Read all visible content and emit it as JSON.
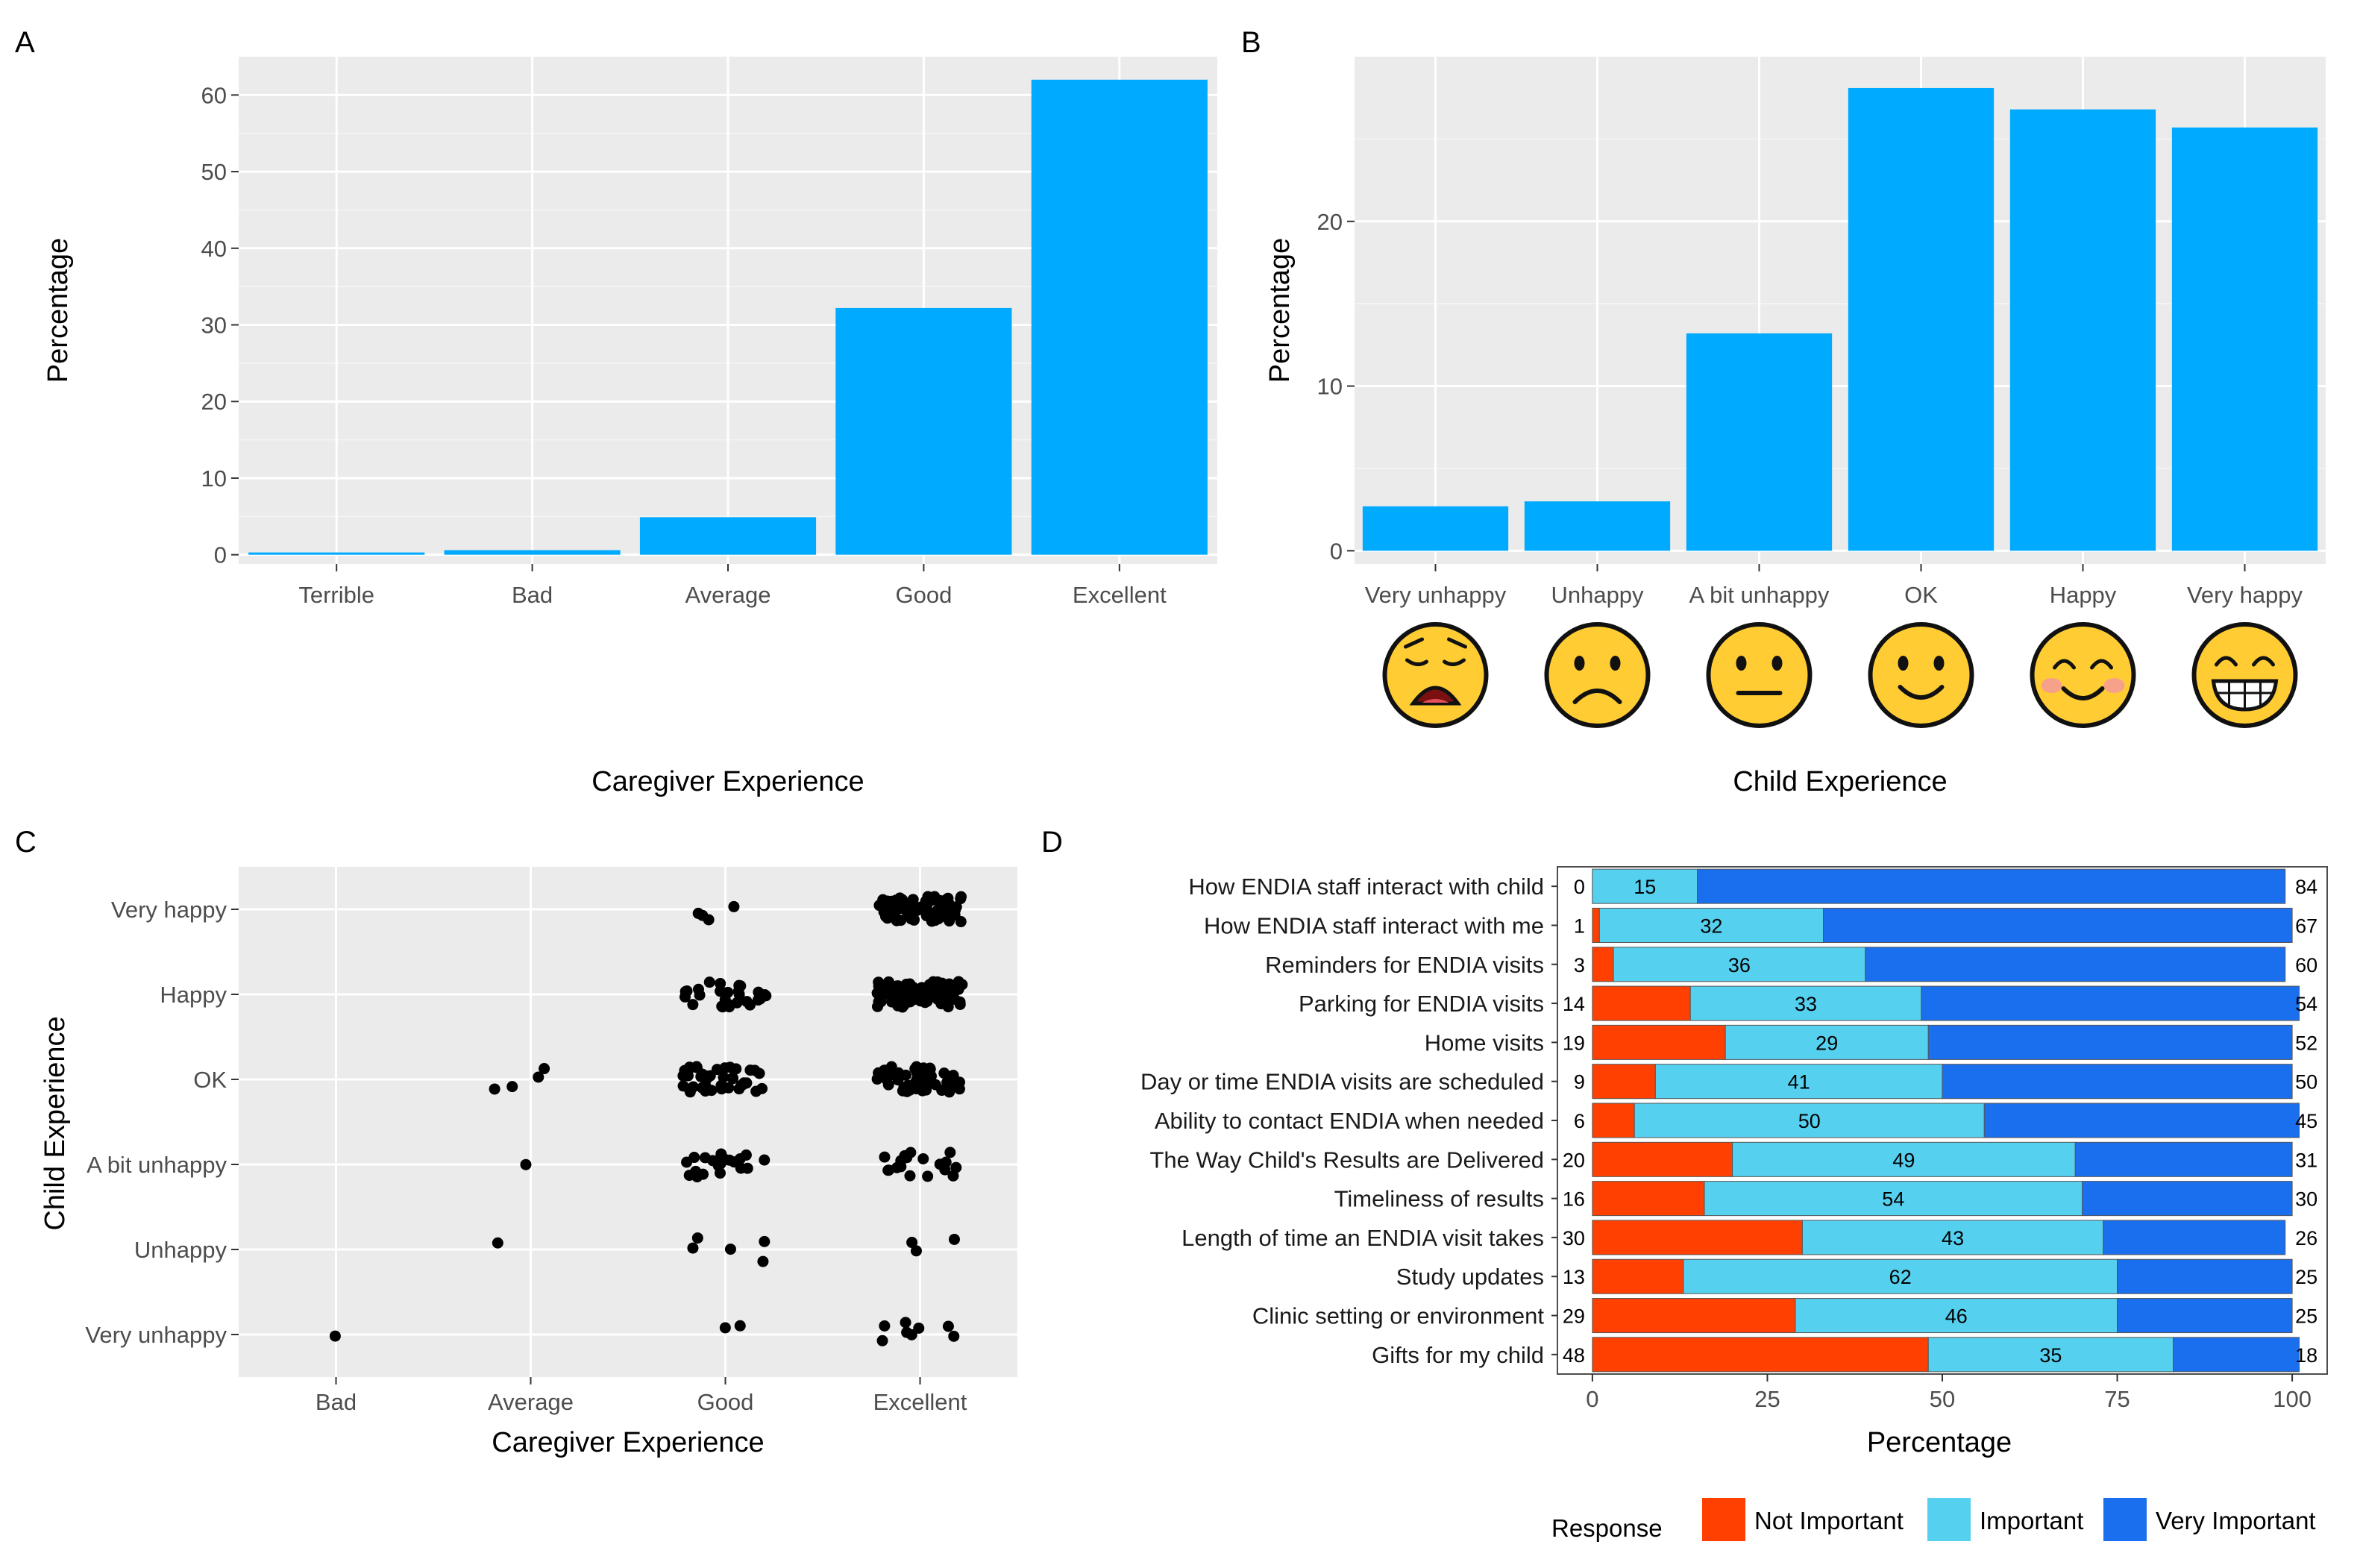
{
  "chart_data": [
    {
      "panel": "A",
      "type": "bar",
      "categories": [
        "Terrible",
        "Bad",
        "Average",
        "Good",
        "Excellent"
      ],
      "values": [
        0.3,
        0.6,
        4.9,
        32.2,
        62.0
      ],
      "xlabel": "Caregiver Experience",
      "ylabel": "Percentage",
      "ylim": [
        -1.2,
        65
      ],
      "yticks": [
        0,
        10,
        20,
        30,
        40,
        50,
        60
      ],
      "grid": true,
      "color": "#00aaff"
    },
    {
      "panel": "B",
      "type": "bar",
      "categories": [
        "Very unhappy",
        "Unhappy",
        "A bit unhappy",
        "OK",
        "Happy",
        "Very happy"
      ],
      "emoji_icons": [
        "tired-face-icon",
        "frowning-face-icon",
        "neutral-face-icon",
        "slightly-smiling-face-icon",
        "smiling-face-icon",
        "grinning-face-icon"
      ],
      "values": [
        2.7,
        3.0,
        13.2,
        28.1,
        26.8,
        25.7
      ],
      "xlabel": "Child Experience",
      "ylabel": "Percentage",
      "ylim": [
        -0.8,
        30
      ],
      "yticks": [
        0,
        10,
        20
      ],
      "grid": true,
      "color": "#00aaff"
    },
    {
      "panel": "C",
      "type": "scatter",
      "jitter": true,
      "x_categories": [
        "Bad",
        "Average",
        "Good",
        "Excellent"
      ],
      "y_categories": [
        "Very unhappy",
        "Unhappy",
        "A bit unhappy",
        "OK",
        "Happy",
        "Very happy"
      ],
      "counts": [
        {
          "x": "Bad",
          "y": "Very unhappy",
          "n": 1
        },
        {
          "x": "Average",
          "y": "Unhappy",
          "n": 1
        },
        {
          "x": "Average",
          "y": "A bit unhappy",
          "n": 1
        },
        {
          "x": "Average",
          "y": "OK",
          "n": 4
        },
        {
          "x": "Good",
          "y": "Very unhappy",
          "n": 2
        },
        {
          "x": "Good",
          "y": "Unhappy",
          "n": 5
        },
        {
          "x": "Good",
          "y": "A bit unhappy",
          "n": 22
        },
        {
          "x": "Good",
          "y": "OK",
          "n": 40
        },
        {
          "x": "Good",
          "y": "Happy",
          "n": 28
        },
        {
          "x": "Good",
          "y": "Very happy",
          "n": 4
        },
        {
          "x": "Excellent",
          "y": "Very unhappy",
          "n": 8
        },
        {
          "x": "Excellent",
          "y": "Unhappy",
          "n": 3
        },
        {
          "x": "Excellent",
          "y": "A bit unhappy",
          "n": 18
        },
        {
          "x": "Excellent",
          "y": "OK",
          "n": 60
        },
        {
          "x": "Excellent",
          "y": "Happy",
          "n": 75
        },
        {
          "x": "Excellent",
          "y": "Very happy",
          "n": 75
        }
      ],
      "xlabel": "Caregiver Experience",
      "ylabel": "Child Experience",
      "grid": true,
      "color": "#000000"
    },
    {
      "panel": "D",
      "type": "bar",
      "orientation": "horizontal",
      "stacked": true,
      "categories": [
        "How ENDIA staff interact with child",
        "How ENDIA staff interact with me",
        "Reminders for ENDIA visits",
        "Parking for ENDIA visits",
        "Home visits",
        "Day or time ENDIA visits are scheduled",
        "Ability to contact ENDIA when needed",
        "The Way Child's Results are Delivered",
        "Timeliness of results",
        "Length of time an ENDIA visit takes",
        "Study updates",
        "Clinic setting or environment",
        "Gifts for my child"
      ],
      "series": [
        {
          "name": "Not Important",
          "color": "#ff4000",
          "values": [
            0,
            1,
            3,
            14,
            19,
            9,
            6,
            20,
            16,
            30,
            13,
            29,
            48
          ]
        },
        {
          "name": "Important",
          "color": "#56d0ef",
          "values": [
            15,
            32,
            36,
            33,
            29,
            41,
            50,
            49,
            54,
            43,
            62,
            46,
            35
          ]
        },
        {
          "name": "Very Important",
          "color": "#1a6fef",
          "values": [
            84,
            67,
            60,
            54,
            52,
            50,
            45,
            31,
            30,
            26,
            25,
            25,
            18
          ]
        }
      ],
      "xlabel": "Percentage",
      "xlim": [
        -5,
        105
      ],
      "xticks": [
        0,
        25,
        50,
        75,
        100
      ],
      "legend_title": "Response",
      "legend_position": "bottom-right",
      "grid": false
    }
  ],
  "panel_letters": {
    "a": "A",
    "b": "B",
    "c": "C",
    "d": "D"
  }
}
